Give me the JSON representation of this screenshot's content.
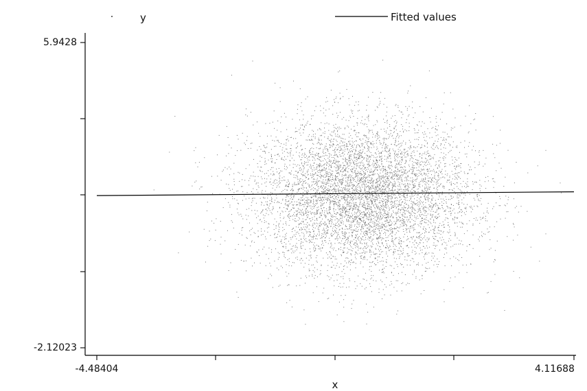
{
  "chart_data": {
    "type": "scatter",
    "title": "",
    "xlabel": "x",
    "ylabel": "",
    "xlim": [
      -4.48404,
      4.11688
    ],
    "ylim": [
      -2.12023,
      5.9428
    ],
    "x_tick_labels": [
      "-4.48404",
      "4.11688"
    ],
    "y_tick_labels": [
      "5.9428",
      "-2.12023"
    ],
    "legend": {
      "placement": "top",
      "entries": [
        {
          "name": "y",
          "marker": "dot"
        },
        {
          "name": "Fitted values",
          "marker": "line"
        }
      ]
    },
    "series": [
      {
        "name": "y",
        "kind": "scatter",
        "approx_center": [
          0.3,
          1.9
        ],
        "approx_sd": [
          1.0,
          1.0
        ],
        "point_count": 12000
      },
      {
        "name": "Fitted values",
        "kind": "line",
        "x": [
          -4.48404,
          4.11688
        ],
        "y": [
          1.9,
          2.0
        ]
      }
    ],
    "grid": false,
    "colors": {
      "points": "#000000",
      "line": "#000000",
      "axis": "#000000"
    }
  }
}
